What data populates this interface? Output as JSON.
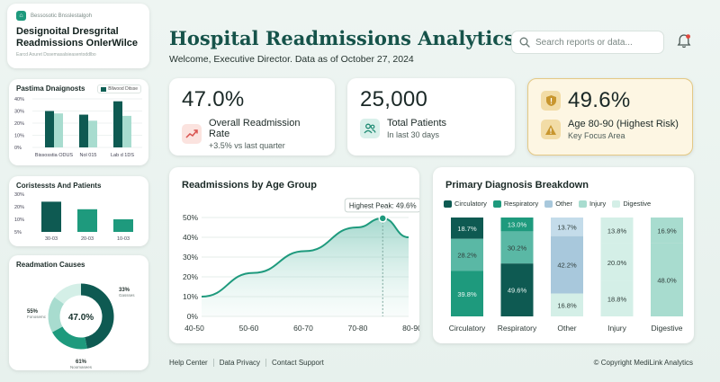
{
  "sidebar": {
    "brand_app": "Bessosotic Bnsslestalgoh",
    "brand_title_1": "Designoital Dresgrital",
    "brand_title_2": "Readmissions OnlerWilce",
    "brand_sub": "Earcd Aouret Dssemasalsieasentoddlbo",
    "diag_title": "Pastima Dnaignosts",
    "diag_legend": "Bllwood Ditsse",
    "diag_yticks": [
      "40%",
      "30%",
      "20%",
      "10%",
      "0%"
    ],
    "diag_xticks": [
      "Bissosstia ODUS",
      "Nol 015",
      "Lab d 1DS"
    ],
    "diag_values": [
      [
        30,
        28
      ],
      [
        27,
        22
      ],
      [
        38,
        26
      ]
    ],
    "cost_title": "Coristessts And Patients",
    "cost_yticks": [
      "30%",
      "20%",
      "10%",
      "5%"
    ],
    "cost_xticks": [
      "30-03",
      "20-03",
      "10-03"
    ],
    "cost_values": [
      24,
      18,
      10
    ],
    "causes_title": "Readmation Causes",
    "causes_center": "47.0%",
    "causes_labels": [
      {
        "pct": "55%",
        "txt": "Fonosemc"
      },
      {
        "pct": "33%",
        "txt": "Gassses"
      },
      {
        "pct": "61%",
        "txt": "Noomasees"
      }
    ],
    "causes_segments": [
      47,
      20,
      18,
      15
    ]
  },
  "header": {
    "title": "Hospital Readmissions Analytics",
    "welcome": "Welcome, Executive Director. Data as of October 27, 2024",
    "search_placeholder": "Search reports or data..."
  },
  "kpis": {
    "rate": {
      "value": "47.0%",
      "label": "Overall Readmission Rate",
      "sub": "+3.5% vs last quarter"
    },
    "patients": {
      "value": "25,000",
      "label": "Total Patients",
      "sub": "In last 30 days"
    },
    "age": {
      "value": "49.6%",
      "label": "Age 80-90 (Highest Risk)",
      "sub": "Key Focus Area"
    }
  },
  "chart_data": [
    {
      "type": "area",
      "title": "Readmissions by Age Group",
      "categories": [
        "40-50",
        "50-60",
        "60-70",
        "70-80",
        "80-90"
      ],
      "x": [
        0,
        1,
        2,
        3,
        3.5,
        4
      ],
      "values": [
        10,
        22,
        33,
        45,
        49.6,
        40
      ],
      "yticks": [
        "50%",
        "40%",
        "30%",
        "20%",
        "10%",
        "0%"
      ],
      "ylim": [
        0,
        50
      ],
      "annotation": "Highest Peak: 49.6%",
      "peak": {
        "x": 3.5,
        "y": 49.6
      },
      "grid": true
    },
    {
      "type": "bar",
      "stacked": true,
      "title": "Primary Diagnosis Breakdown",
      "categories": [
        "Circulatory",
        "Respiratory",
        "Other",
        "Injury",
        "Digestive"
      ],
      "legend": [
        "Circulatory",
        "Respiratory",
        "Other",
        "Injury",
        "Digestive"
      ],
      "stacks": [
        {
          "segments": [
            18.7,
            28.2,
            39.8
          ],
          "labels": [
            "18.7%",
            "28.2%",
            "39.8%"
          ]
        },
        {
          "segments": [
            13.0,
            30.2,
            49.6
          ],
          "labels": [
            "13.0%",
            "30.2%",
            "49.6%"
          ]
        },
        {
          "segments": [
            13.7,
            42.2,
            16.8
          ],
          "labels": [
            "13.7%",
            "42.2%",
            "16.8%"
          ]
        },
        {
          "segments": [
            13.8,
            20.0,
            18.8
          ],
          "labels": [
            "13.8%",
            "20.0%",
            "18.8%"
          ]
        },
        {
          "segments": [
            16.9,
            48.0
          ],
          "labels": [
            "16.9%",
            "48.0%"
          ]
        }
      ]
    }
  ],
  "colors": {
    "dark_teal": "#0e5a52",
    "teal": "#1e9a7d",
    "mid_teal": "#5ab8a5",
    "light_teal": "#a8dccf",
    "pale_teal": "#d4efe7",
    "blue_gray": "#a8c8dc",
    "light_blue": "#c4dcea"
  },
  "footer": {
    "links": [
      "Help Center",
      "Data Privacy",
      "Contact Support"
    ],
    "copyright": "© Copyright MediLink Analytics"
  }
}
